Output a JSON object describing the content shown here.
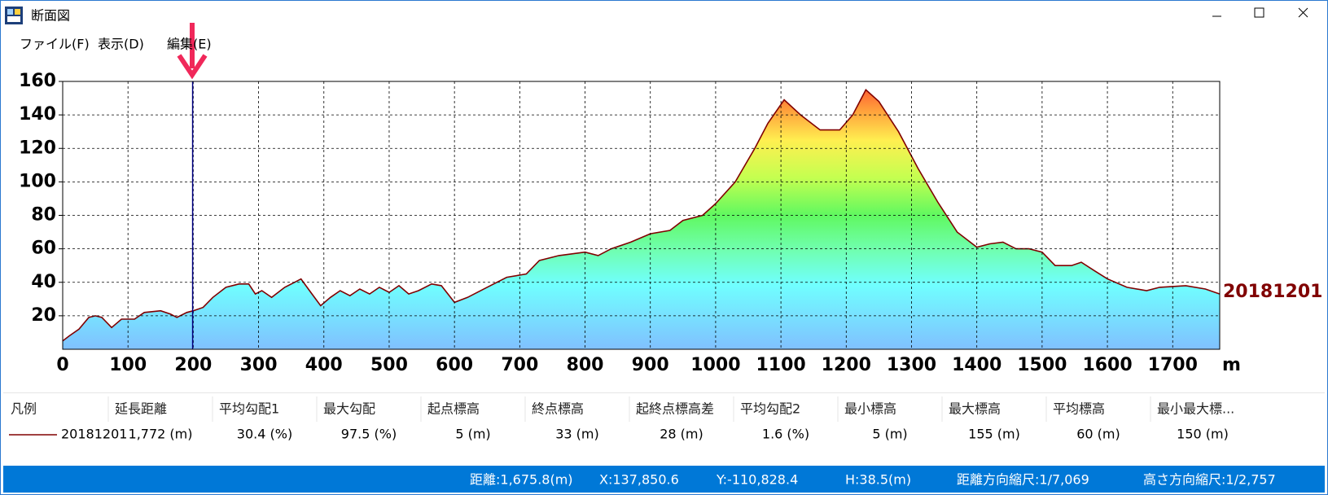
{
  "window": {
    "title": "断面図",
    "menu": [
      "ファイル(F)",
      "表示(D)",
      "編集(E)"
    ]
  },
  "chart_data": {
    "type": "area",
    "x": [
      0,
      10,
      25,
      40,
      50,
      60,
      75,
      90,
      110,
      125,
      150,
      165,
      175,
      190,
      200,
      215,
      230,
      250,
      270,
      285,
      295,
      305,
      320,
      340,
      355,
      365,
      380,
      395,
      410,
      425,
      440,
      455,
      470,
      485,
      500,
      515,
      530,
      545,
      565,
      580,
      600,
      620,
      650,
      680,
      710,
      730,
      760,
      800,
      820,
      840,
      870,
      900,
      930,
      950,
      980,
      1000,
      1030,
      1060,
      1080,
      1105,
      1130,
      1160,
      1190,
      1210,
      1230,
      1250,
      1280,
      1310,
      1340,
      1370,
      1400,
      1420,
      1440,
      1460,
      1480,
      1500,
      1520,
      1545,
      1560,
      1580,
      1600,
      1630,
      1660,
      1680,
      1720,
      1750,
      1772
    ],
    "series": [
      {
        "name": "20181201",
        "color": "#800000",
        "values": [
          5,
          8,
          12,
          19,
          20,
          19,
          13,
          18,
          18,
          22,
          23,
          21,
          19,
          22,
          23,
          25,
          31,
          37,
          39,
          39,
          33,
          35,
          31,
          37,
          40,
          42,
          34,
          26,
          31,
          35,
          32,
          36,
          33,
          37,
          34,
          38,
          33,
          35,
          39,
          38,
          28,
          31,
          37,
          43,
          45,
          53,
          56,
          58,
          56,
          60,
          64,
          69,
          71,
          77,
          80,
          87,
          100,
          120,
          135,
          149,
          140,
          131,
          131,
          140,
          155,
          148,
          130,
          108,
          88,
          70,
          61,
          63,
          64,
          60,
          60,
          58,
          50,
          50,
          52,
          47,
          42,
          37,
          35,
          37,
          38,
          36,
          33
        ]
      }
    ],
    "xlim": [
      0,
      1772
    ],
    "ylim": [
      0,
      160
    ],
    "xticks": [
      0,
      100,
      200,
      300,
      400,
      500,
      600,
      700,
      800,
      900,
      1000,
      1100,
      1200,
      1300,
      1400,
      1500,
      1600,
      1700
    ],
    "yticks": [
      20,
      40,
      60,
      80,
      100,
      120,
      140,
      160
    ],
    "x_unit": "m",
    "grid": true,
    "cursor_x": 199
  },
  "table": {
    "headers": [
      "凡例",
      "延長距離",
      "平均勾配1",
      "最大勾配",
      "起点標高",
      "終点標高",
      "起終点標高差",
      "平均勾配2",
      "最小標高",
      "最大標高",
      "平均標高",
      "最小最大標..."
    ],
    "rows": [
      [
        "20181201",
        "1,772 (m)",
        "30.4 (%)",
        "97.5 (%)",
        "5 (m)",
        "33 (m)",
        "28 (m)",
        "1.6 (%)",
        "5 (m)",
        "155 (m)",
        "60 (m)",
        "150 (m)"
      ]
    ]
  },
  "status_bar": [
    "距離:1,675.8(m)",
    "X:137,850.6",
    "Y:-110,828.4",
    "H:38.5(m)",
    "距離方向縮尺:1/7,069",
    "高さ方向縮尺:1/2,757"
  ]
}
